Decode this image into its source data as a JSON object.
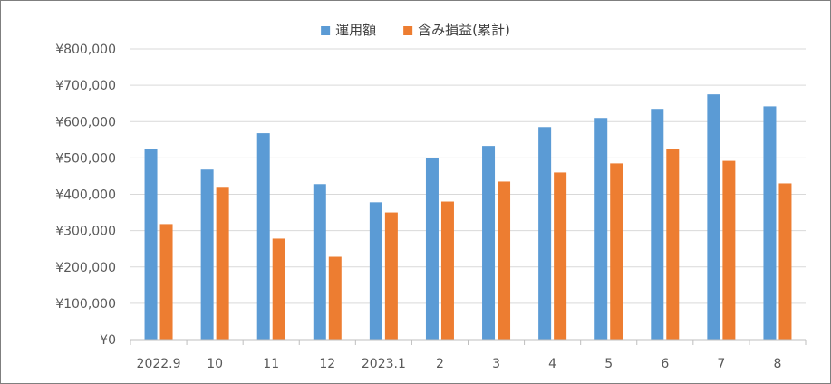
{
  "chart_data": {
    "type": "bar",
    "categories": [
      "2022.9",
      "10",
      "11",
      "12",
      "2023.1",
      "2",
      "3",
      "4",
      "5",
      "6",
      "7",
      "8"
    ],
    "series": [
      {
        "name": "運用額",
        "color": "#5b9bd5",
        "values": [
          525000,
          468000,
          568000,
          428000,
          378000,
          500000,
          533000,
          585000,
          610000,
          635000,
          675000,
          642000
        ]
      },
      {
        "name": "含み損益(累計)",
        "color": "#ed7d31",
        "values": [
          318000,
          418000,
          278000,
          228000,
          350000,
          380000,
          435000,
          460000,
          485000,
          525000,
          492000,
          430000
        ]
      }
    ],
    "y_tick_labels": [
      "¥0",
      "¥100,000",
      "¥200,000",
      "¥300,000",
      "¥400,000",
      "¥500,000",
      "¥600,000",
      "¥700,000",
      "¥800,000"
    ],
    "ylim": [
      0,
      800000
    ],
    "y_step": 100000,
    "grid": true,
    "legend_position": "top-center",
    "gridline_color": "#d9d9d9",
    "axis_color": "#bfbfbf"
  }
}
